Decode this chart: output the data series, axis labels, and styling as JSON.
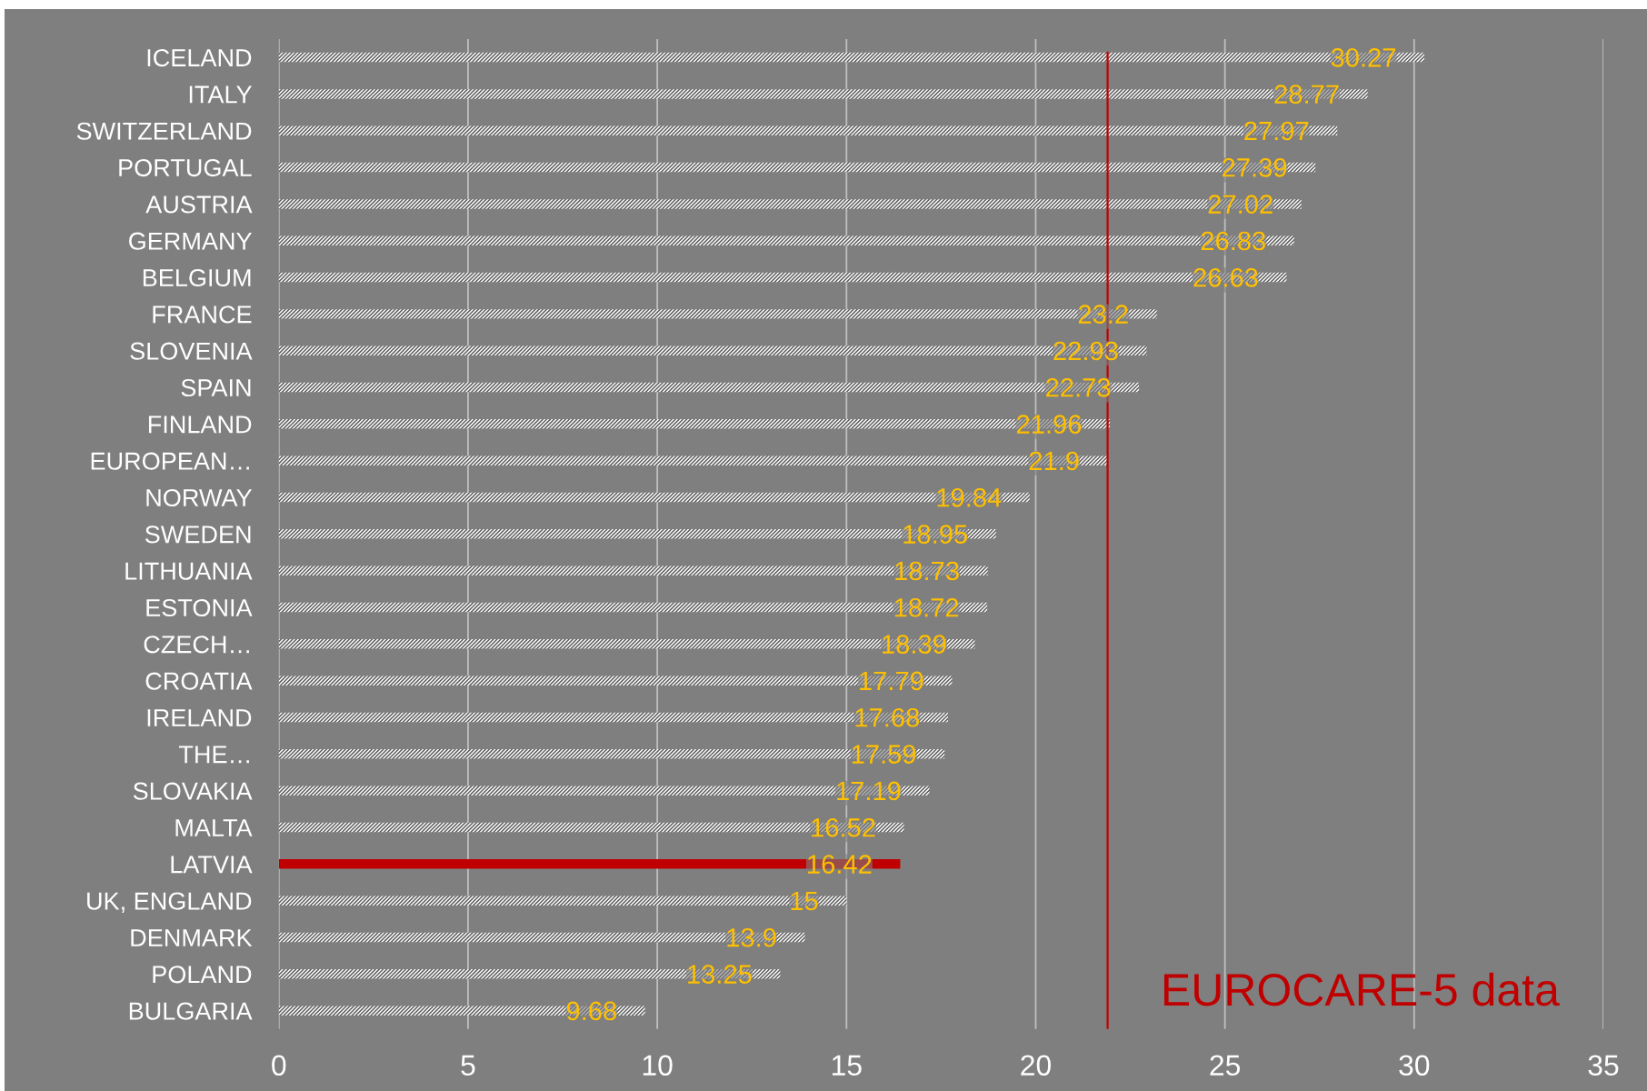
{
  "chart_data": {
    "type": "bar",
    "orientation": "horizontal",
    "categories": [
      "ICELAND",
      "ITALY",
      "SWITZERLAND",
      "PORTUGAL",
      "AUSTRIA",
      "GERMANY",
      "BELGIUM",
      "FRANCE",
      "SLOVENIA",
      "SPAIN",
      "FINLAND",
      "EUROPEAN…",
      "NORWAY",
      "SWEDEN",
      "LITHUANIA",
      "ESTONIA",
      "CZECH…",
      "CROATIA",
      "IRELAND",
      "THE…",
      "SLOVAKIA",
      "MALTA",
      "LATVIA",
      "UK, ENGLAND",
      "DENMARK",
      "POLAND",
      "BULGARIA"
    ],
    "values": [
      30.27,
      28.77,
      27.97,
      27.39,
      27.02,
      26.83,
      26.63,
      23.2,
      22.93,
      22.73,
      21.96,
      21.9,
      19.84,
      18.95,
      18.73,
      18.72,
      18.39,
      17.79,
      17.68,
      17.59,
      17.19,
      16.52,
      16.42,
      15,
      13.9,
      13.25,
      9.68
    ],
    "colors": [
      "#ffffff",
      "#ffffff",
      "#ffffff",
      "#ffffff",
      "#ffffff",
      "#ffffff",
      "#ffffff",
      "#ffffff",
      "#ffffff",
      "#ffffff",
      "#ffffff",
      "#ffffff",
      "#ffffff",
      "#ffffff",
      "#ffffff",
      "#ffffff",
      "#ffffff",
      "#ffffff",
      "#ffffff",
      "#ffffff",
      "#ffffff",
      "#ffffff",
      "#c00000",
      "#ffffff",
      "#ffffff",
      "#ffffff",
      "#ffffff"
    ],
    "xlim": [
      0,
      35
    ],
    "xticks": [
      0,
      5,
      10,
      15,
      20,
      25,
      30,
      35
    ],
    "grid": "x",
    "data_labels": true,
    "ref_lines": [
      {
        "axis": "x",
        "value": 21.9,
        "color": "#c00000"
      }
    ],
    "annotations": [
      "EUROCARE-5 data"
    ]
  }
}
